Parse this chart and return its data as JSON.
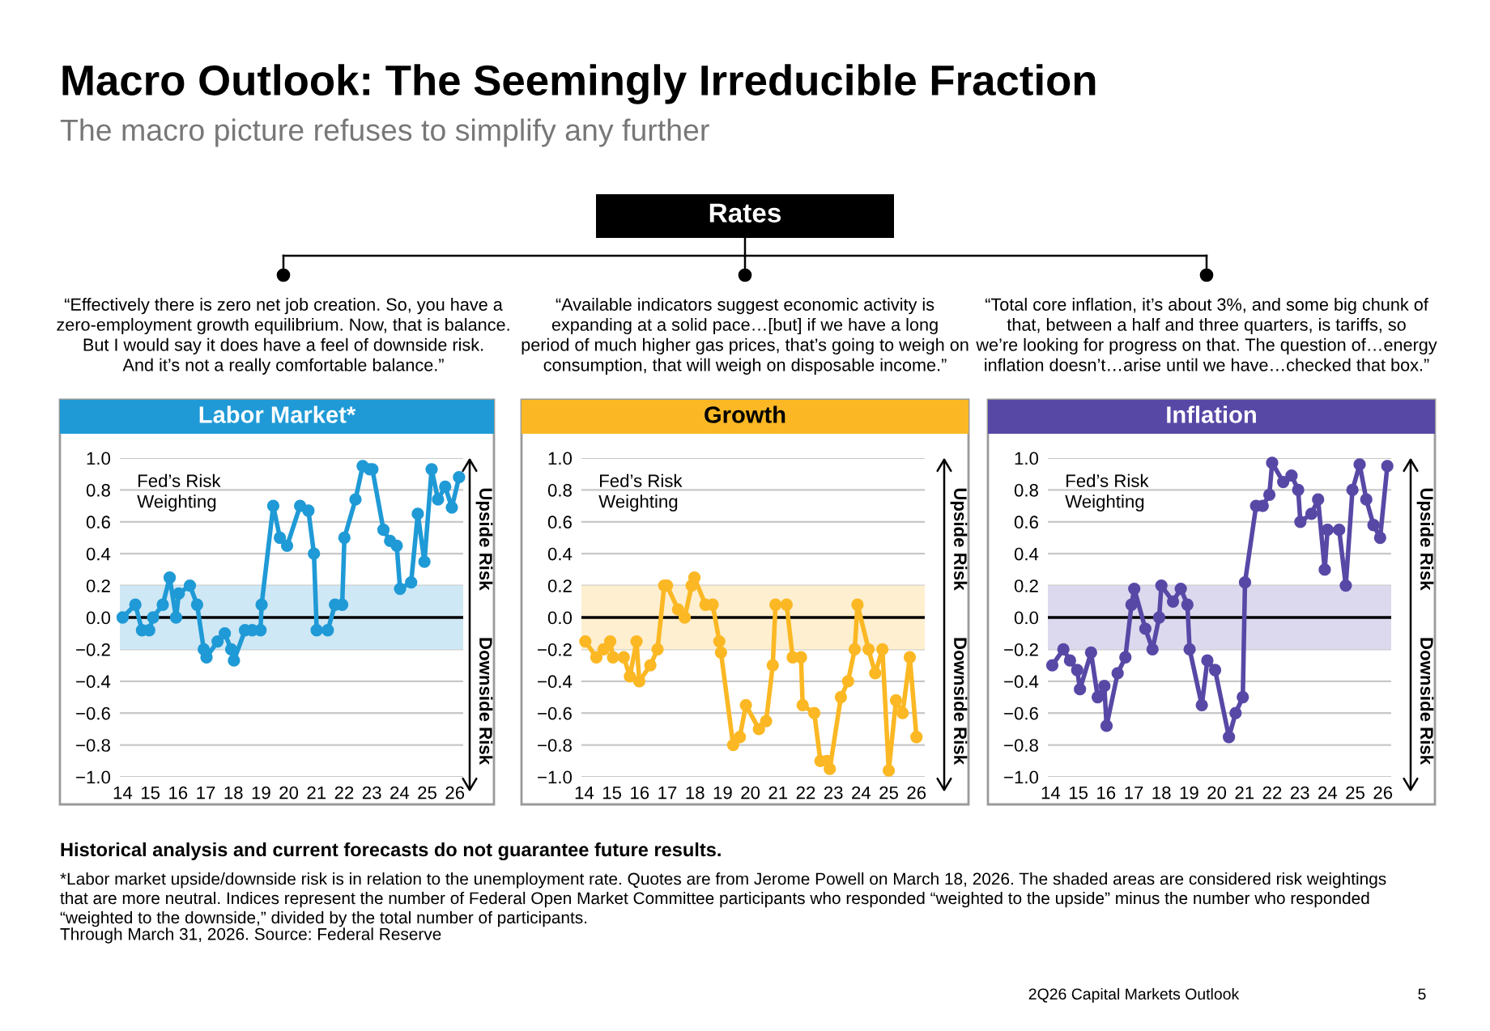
{
  "chart_data": [
    {
      "type": "other",
      "title": "Macro Outlook: The Seemingly Irreducible Fraction",
      "subtitle": "The macro picture refuses to simplify any further",
      "annotations": [
        "Rates",
        "Historical analysis and current forecasts do not guarantee future results.",
        "*Labor market upside/downside risk is in relation to the unemployment rate. Quotes are from Jerome Powell on March 18, 2026. The shaded areas are considered risk weightings\nthat are more neutral. Indices represent the number of Federal Open Market Committee participants who responded “weighted to the upside” minus the number who responded\n“weighted to the downside,” divided by the total number of participants.",
        "Through March 31, 2026. Source: Federal Reserve",
        "2Q26 Capital Markets Outlook",
        "5"
      ]
    },
    {
      "type": "line",
      "title": "Labor Market*",
      "marker": "circle",
      "line_style": "solid",
      "grid": "y",
      "xlim": [
        13.9,
        26.3
      ],
      "xticks": [
        14,
        15,
        16,
        17,
        18,
        19,
        20,
        21,
        22,
        23,
        24,
        25,
        26
      ],
      "ylim": [
        -1.0,
        1.0
      ],
      "yticks": [
        {
          "value": -1.0,
          "label": "−1.0"
        },
        {
          "value": -0.8,
          "label": "−0.8"
        },
        {
          "value": -0.6,
          "label": "−0.6"
        },
        {
          "value": -0.4,
          "label": "−0.4"
        },
        {
          "value": -0.2,
          "label": "−0.2"
        },
        {
          "value": 0.0,
          "label": "0.0"
        },
        {
          "value": 0.2,
          "label": "0.2"
        },
        {
          "value": 0.4,
          "label": "0.4"
        },
        {
          "value": 0.6,
          "label": "0.6"
        },
        {
          "value": 0.8,
          "label": "0.8"
        },
        {
          "value": 1.0,
          "label": "1.0"
        }
      ],
      "bands": [
        {
          "axis": "y",
          "from": -0.2,
          "to": 0.2,
          "color": "#cfe8f5"
        }
      ],
      "ref_lines": [
        {
          "axis": "y",
          "value": 0.0,
          "color": "#000000"
        }
      ],
      "annotations": [
        "“Effectively there is zero net job creation. So, you have a\nzero-employment growth equilibrium. Now, that is balance.\nBut I would say it does have a feel of downside risk.\nAnd it’s not a really comfortable balance.”",
        "Fed’s Risk\nWeighting",
        "Upside Risk",
        "Downside Risk"
      ],
      "series": [
        {
          "color": "#1f9ad6",
          "x": [
            14.0,
            14.46,
            14.7,
            14.96,
            15.1,
            15.45,
            15.7,
            15.93,
            16.03,
            16.43,
            16.69,
            16.93,
            17.03,
            17.43,
            17.69,
            17.92,
            18.02,
            18.42,
            18.68,
            18.98,
            19.02,
            19.44,
            19.68,
            19.94,
            20.41,
            20.71,
            20.91,
            21.01,
            21.41,
            21.67,
            21.93,
            22.01,
            22.41,
            22.67,
            22.92,
            23.02,
            23.42,
            23.66,
            23.9,
            24.02,
            24.42,
            24.66,
            24.9,
            25.16,
            25.39,
            25.65,
            25.89,
            26.15
          ],
          "values": [
            0.0,
            0.08,
            -0.08,
            -0.08,
            0.0,
            0.08,
            0.25,
            0.0,
            0.15,
            0.2,
            0.08,
            -0.2,
            -0.25,
            -0.15,
            -0.1,
            -0.2,
            -0.27,
            -0.08,
            -0.08,
            -0.08,
            0.08,
            0.7,
            0.5,
            0.45,
            0.7,
            0.67,
            0.4,
            -0.08,
            -0.08,
            0.08,
            0.08,
            0.5,
            0.74,
            0.95,
            0.93,
            0.93,
            0.55,
            0.48,
            0.45,
            0.18,
            0.22,
            0.65,
            0.35,
            0.93,
            0.74,
            0.82,
            0.69,
            0.88
          ]
        }
      ]
    },
    {
      "type": "line",
      "title": "Growth",
      "marker": "circle",
      "line_style": "solid",
      "grid": "y",
      "xlim": [
        13.9,
        26.3
      ],
      "xticks": [
        14,
        15,
        16,
        17,
        18,
        19,
        20,
        21,
        22,
        23,
        24,
        25,
        26
      ],
      "ylim": [
        -1.0,
        1.0
      ],
      "yticks": [
        {
          "value": -1.0,
          "label": "−1.0"
        },
        {
          "value": -0.8,
          "label": "−0.8"
        },
        {
          "value": -0.6,
          "label": "−0.6"
        },
        {
          "value": -0.4,
          "label": "−0.4"
        },
        {
          "value": -0.2,
          "label": "−0.2"
        },
        {
          "value": 0.0,
          "label": "0.0"
        },
        {
          "value": 0.2,
          "label": "0.2"
        },
        {
          "value": 0.4,
          "label": "0.4"
        },
        {
          "value": 0.6,
          "label": "0.6"
        },
        {
          "value": 0.8,
          "label": "0.8"
        },
        {
          "value": 1.0,
          "label": "1.0"
        }
      ],
      "bands": [
        {
          "axis": "y",
          "from": -0.2,
          "to": 0.2,
          "color": "#fdefd0"
        }
      ],
      "ref_lines": [
        {
          "axis": "y",
          "value": 0.0,
          "color": "#000000"
        }
      ],
      "annotations": [
        "“Available indicators suggest economic activity is\nexpanding at a solid pace…[but] if we have a long\nperiod of much higher gas prices, that’s going to weigh on\nconsumption, that will weigh on disposable income.”",
        "Fed’s Risk\nWeighting",
        "Upside Risk",
        "Downside Risk"
      ],
      "series": [
        {
          "color": "#fbb824",
          "x": [
            14.04,
            14.44,
            14.7,
            14.94,
            15.04,
            15.43,
            15.65,
            15.89,
            15.99,
            16.39,
            16.65,
            16.89,
            16.99,
            17.39,
            17.63,
            17.88,
            17.98,
            18.38,
            18.64,
            18.88,
            18.94,
            19.38,
            19.62,
            19.84,
            20.31,
            20.57,
            20.81,
            20.91,
            21.31,
            21.53,
            21.83,
            21.89,
            22.31,
            22.53,
            22.77,
            22.87,
            23.27,
            23.53,
            23.77,
            23.87,
            24.27,
            24.51,
            24.77,
            25.0,
            25.26,
            25.5,
            25.76,
            26.0
          ],
          "values": [
            -0.15,
            -0.25,
            -0.2,
            -0.15,
            -0.25,
            -0.25,
            -0.37,
            -0.15,
            -0.4,
            -0.3,
            -0.2,
            0.2,
            0.2,
            0.05,
            0.0,
            0.2,
            0.25,
            0.08,
            0.08,
            -0.15,
            -0.22,
            -0.8,
            -0.75,
            -0.55,
            -0.7,
            -0.65,
            -0.3,
            0.08,
            0.08,
            -0.25,
            -0.25,
            -0.55,
            -0.6,
            -0.9,
            -0.9,
            -0.95,
            -0.5,
            -0.4,
            -0.2,
            0.08,
            -0.2,
            -0.35,
            -0.2,
            -0.96,
            -0.52,
            -0.6,
            -0.25,
            -0.75
          ]
        }
      ]
    },
    {
      "type": "line",
      "title": "Inflation",
      "marker": "circle",
      "line_style": "solid",
      "grid": "y",
      "xlim": [
        13.9,
        26.3
      ],
      "xticks": [
        14,
        15,
        16,
        17,
        18,
        19,
        20,
        21,
        22,
        23,
        24,
        25,
        26
      ],
      "ylim": [
        -1.0,
        1.0
      ],
      "yticks": [
        {
          "value": -1.0,
          "label": "−1.0"
        },
        {
          "value": -0.8,
          "label": "−0.8"
        },
        {
          "value": -0.6,
          "label": "−0.6"
        },
        {
          "value": -0.4,
          "label": "−0.4"
        },
        {
          "value": -0.2,
          "label": "−0.2"
        },
        {
          "value": 0.0,
          "label": "0.0"
        },
        {
          "value": 0.2,
          "label": "0.2"
        },
        {
          "value": 0.4,
          "label": "0.4"
        },
        {
          "value": 0.6,
          "label": "0.6"
        },
        {
          "value": 0.8,
          "label": "0.8"
        },
        {
          "value": 1.0,
          "label": "1.0"
        }
      ],
      "bands": [
        {
          "axis": "y",
          "from": -0.2,
          "to": 0.2,
          "color": "#dcd9ee"
        }
      ],
      "ref_lines": [
        {
          "axis": "y",
          "value": 0.0,
          "color": "#000000"
        }
      ],
      "annotations": [
        "“Total core inflation, it’s about 3%, and some big chunk of\nthat, between a half and three quarters, is tariffs, so\nwe’re looking for progress on that. The question of…energy\ninflation doesn’t…arise until we have…checked that box.”",
        "Fed’s Risk\nWeighting",
        "Upside Risk",
        "Downside Risk"
      ],
      "series": [
        {
          "color": "#5848a6",
          "x": [
            14.06,
            14.46,
            14.7,
            14.96,
            15.06,
            15.46,
            15.7,
            15.94,
            16.02,
            16.42,
            16.7,
            16.92,
            17.02,
            17.42,
            17.68,
            17.92,
            18.0,
            18.42,
            18.7,
            18.94,
            19.02,
            19.46,
            19.66,
            19.94,
            20.44,
            20.68,
            20.94,
            21.02,
            21.42,
            21.66,
            21.9,
            22.0,
            22.4,
            22.7,
            22.94,
            23.02,
            23.42,
            23.66,
            23.9,
            24.0,
            24.42,
            24.66,
            24.9,
            25.16,
            25.4,
            25.66,
            25.9,
            26.16
          ],
          "values": [
            -0.3,
            -0.2,
            -0.27,
            -0.33,
            -0.45,
            -0.22,
            -0.5,
            -0.43,
            -0.68,
            -0.35,
            -0.25,
            0.08,
            0.18,
            -0.07,
            -0.2,
            0.0,
            0.2,
            0.1,
            0.18,
            0.08,
            -0.2,
            -0.55,
            -0.27,
            -0.33,
            -0.75,
            -0.6,
            -0.5,
            0.22,
            0.7,
            0.7,
            0.77,
            0.97,
            0.85,
            0.89,
            0.8,
            0.6,
            0.65,
            0.74,
            0.3,
            0.55,
            0.55,
            0.2,
            0.8,
            0.96,
            0.74,
            0.58,
            0.5,
            0.95
          ]
        }
      ]
    }
  ]
}
